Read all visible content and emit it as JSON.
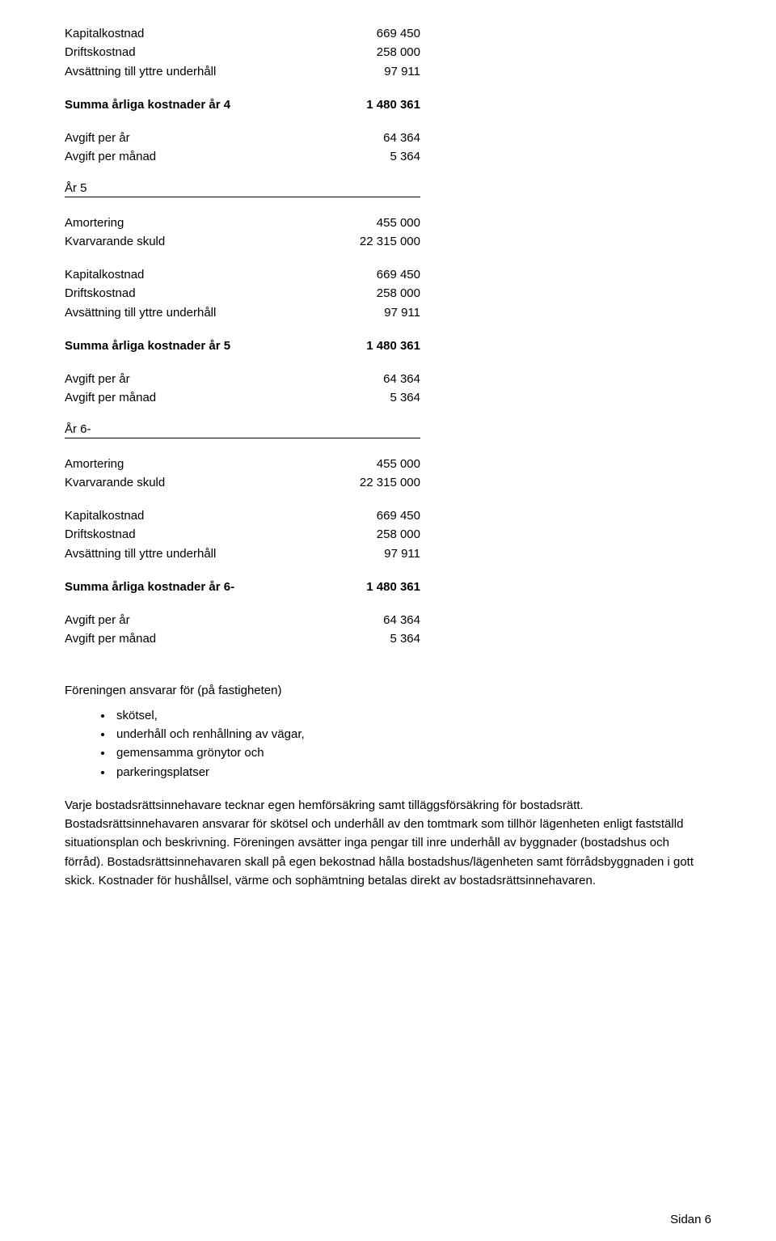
{
  "top_block": {
    "rows": [
      {
        "label": "Kapitalkostnad",
        "value": "669 450"
      },
      {
        "label": "Driftskostnad",
        "value": "258 000"
      },
      {
        "label": "Avsättning till yttre underhåll",
        "value": "97 911"
      }
    ],
    "sum": {
      "label": "Summa årliga kostnader år 4",
      "value": "1 480 361"
    },
    "fees": [
      {
        "label": "Avgift per år",
        "value": "64 364"
      },
      {
        "label": "Avgift per månad",
        "value": "5 364"
      }
    ]
  },
  "year5": {
    "heading": "År 5",
    "amort": [
      {
        "label": "Amortering",
        "value": "455 000"
      },
      {
        "label": "Kvarvarande skuld",
        "value": "22 315 000"
      }
    ],
    "costs": [
      {
        "label": "Kapitalkostnad",
        "value": "669 450"
      },
      {
        "label": "Driftskostnad",
        "value": "258 000"
      },
      {
        "label": "Avsättning till yttre underhåll",
        "value": "97 911"
      }
    ],
    "sum": {
      "label": "Summa årliga kostnader år 5",
      "value": "1 480 361"
    },
    "fees": [
      {
        "label": "Avgift per år",
        "value": "64 364"
      },
      {
        "label": "Avgift per månad",
        "value": "5 364"
      }
    ]
  },
  "year6": {
    "heading": "År 6-",
    "amort": [
      {
        "label": "Amortering",
        "value": "455 000"
      },
      {
        "label": "Kvarvarande skuld",
        "value": "22 315 000"
      }
    ],
    "costs": [
      {
        "label": "Kapitalkostnad",
        "value": "669 450"
      },
      {
        "label": "Driftskostnad",
        "value": "258 000"
      },
      {
        "label": "Avsättning till yttre underhåll",
        "value": "97 911"
      }
    ],
    "sum": {
      "label": "Summa årliga kostnader år 6-",
      "value": "1 480 361"
    },
    "fees": [
      {
        "label": "Avgift per år",
        "value": "64 364"
      },
      {
        "label": "Avgift per månad",
        "value": "5 364"
      }
    ]
  },
  "responsibility": {
    "intro": "Föreningen ansvarar för (på fastigheten)",
    "items": [
      "skötsel,",
      "underhåll och renhållning av vägar,",
      "gemensamma grönytor och",
      "parkeringsplatser"
    ]
  },
  "para1": "Varje bostadsrättsinnehavare tecknar egen hemförsäkring samt tilläggsförsäkring för bostadsrätt. Bostadsrättsinnehavaren ansvarar för skötsel och underhåll av den tomtmark som tillhör lägenheten enligt fastställd situationsplan och beskrivning. Föreningen avsätter inga pengar till inre underhåll av byggnader (bostadshus och förråd). Bostadsrättsinnehavaren skall på egen bekostnad hålla bostadshus/lägenheten samt förrådsbyggnaden i gott skick. Kostnader för hushållsel, värme och sophämtning betalas direkt av bostadsrättsinnehavaren.",
  "footer": "Sidan 6"
}
